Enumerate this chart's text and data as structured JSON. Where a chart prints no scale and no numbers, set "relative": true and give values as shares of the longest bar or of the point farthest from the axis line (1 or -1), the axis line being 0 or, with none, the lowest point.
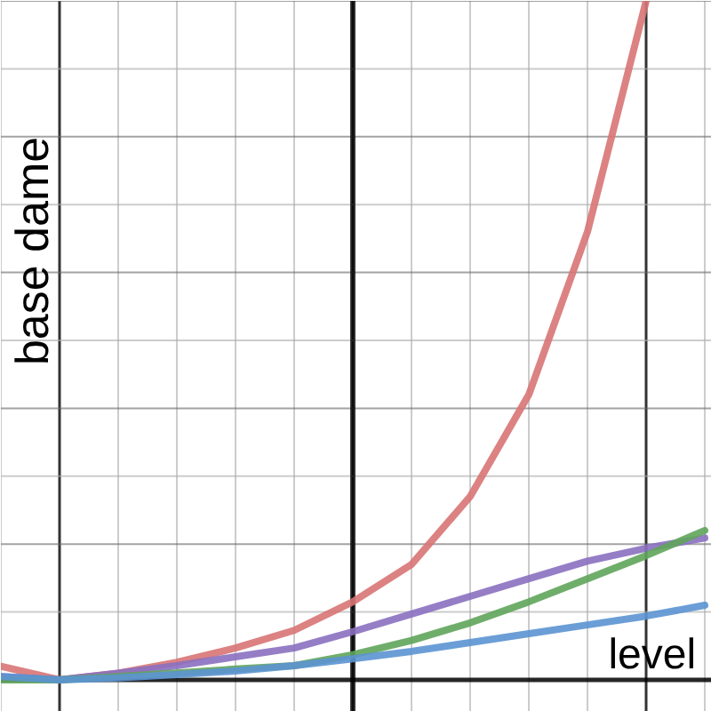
{
  "chart_data": {
    "type": "line",
    "relative": true,
    "ylabel": "base dame",
    "annotations": [
      "level"
    ],
    "categories": [
      null,
      null,
      null,
      null,
      null,
      null,
      null,
      null,
      null,
      null,
      null,
      null,
      null
    ],
    "series": [
      {
        "color": "#d87474",
        "values": [
          0.02,
          0.0,
          0.01,
          0.026,
          0.047,
          0.073,
          0.115,
          0.17,
          0.27,
          0.42,
          0.66,
          1.0,
          null
        ]
      },
      {
        "color": "#8a70c0",
        "values": [
          0.005,
          0.0,
          0.01,
          0.021,
          0.034,
          0.047,
          0.071,
          0.097,
          0.123,
          0.149,
          0.175,
          0.194,
          0.209
        ]
      },
      {
        "color": "#5fa55a",
        "values": [
          0.0,
          0.0,
          0.005,
          0.01,
          0.016,
          0.021,
          0.037,
          0.058,
          0.084,
          0.115,
          0.149,
          0.183,
          0.22
        ]
      },
      {
        "color": "#5b93d1",
        "values": [
          0.005,
          0.0,
          0.003,
          0.008,
          0.013,
          0.021,
          0.031,
          0.042,
          0.055,
          0.068,
          0.081,
          0.094,
          0.11
        ]
      }
    ],
    "grid": true,
    "marker": "none",
    "line_style": "solid"
  }
}
